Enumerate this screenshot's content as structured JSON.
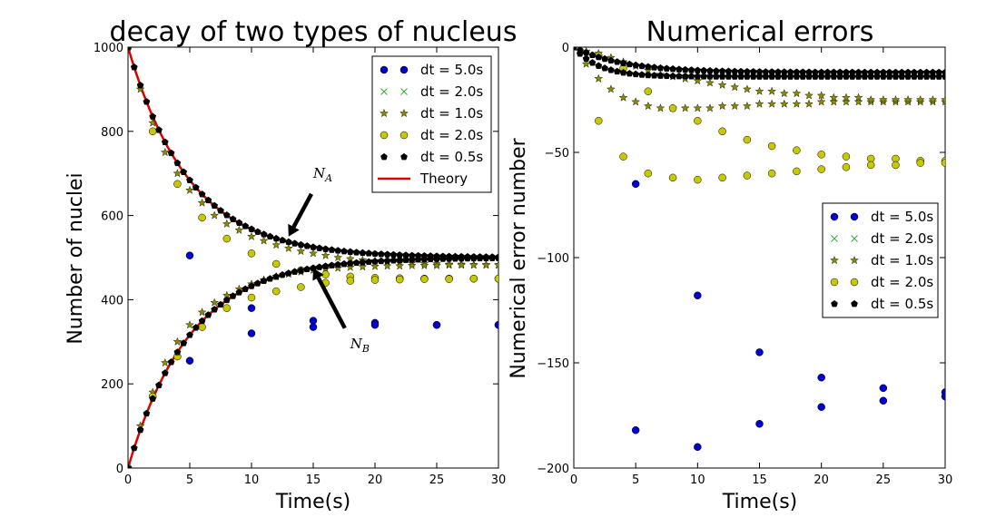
{
  "chart_data": [
    {
      "type": "scatter",
      "title": "decay of two types of nucleus",
      "xlabel": "Time(s)",
      "ylabel": "Number of nuclei",
      "xlim": [
        0,
        30
      ],
      "ylim": [
        0,
        1000
      ],
      "xticks": [
        0,
        5,
        10,
        15,
        20,
        25,
        30
      ],
      "yticks": [
        0,
        200,
        400,
        600,
        800,
        1000
      ],
      "grid": false,
      "legend_position": "top-right",
      "series": [
        {
          "name": "dt=5.0s",
          "marker": "circle",
          "color": "#0000cc",
          "points": [
            [
              0,
              1000
            ],
            [
              5,
              505
            ],
            [
              10,
              380
            ],
            [
              15,
              350
            ],
            [
              20,
              345
            ],
            [
              25,
              340
            ],
            [
              30,
              340
            ],
            [
              0,
              0
            ],
            [
              5,
              255
            ],
            [
              10,
              320
            ],
            [
              15,
              335
            ],
            [
              20,
              340
            ],
            [
              25,
              340
            ],
            [
              30,
              340
            ]
          ]
        },
        {
          "name": "dt=2.0s",
          "marker": "x",
          "color": "#33aa33",
          "points": []
        },
        {
          "name": "dt=1.0s",
          "marker": "star",
          "color": "#8a8a00",
          "points": [
            [
              0,
              1000
            ],
            [
              1,
              900
            ],
            [
              2,
              820
            ],
            [
              3,
              750
            ],
            [
              4,
              700
            ],
            [
              5,
              660
            ],
            [
              6,
              630
            ],
            [
              7,
              600
            ],
            [
              8,
              580
            ],
            [
              9,
              565
            ],
            [
              10,
              550
            ],
            [
              11,
              540
            ],
            [
              12,
              530
            ],
            [
              13,
              522
            ],
            [
              14,
              515
            ],
            [
              15,
              510
            ],
            [
              16,
              505
            ],
            [
              17,
              500
            ],
            [
              18,
              497
            ],
            [
              19,
              494
            ],
            [
              20,
              492
            ],
            [
              21,
              490
            ],
            [
              22,
              488
            ],
            [
              23,
              487
            ],
            [
              24,
              486
            ],
            [
              25,
              485
            ],
            [
              26,
              484
            ],
            [
              27,
              484
            ],
            [
              28,
              483
            ],
            [
              29,
              483
            ],
            [
              30,
              483
            ],
            [
              0,
              0
            ],
            [
              1,
              100
            ],
            [
              2,
              180
            ],
            [
              3,
              250
            ],
            [
              4,
              300
            ],
            [
              5,
              340
            ],
            [
              6,
              370
            ],
            [
              7,
              393
            ],
            [
              8,
              410
            ],
            [
              9,
              425
            ],
            [
              10,
              437
            ],
            [
              11,
              447
            ],
            [
              12,
              455
            ],
            [
              13,
              461
            ],
            [
              14,
              466
            ],
            [
              15,
              470
            ],
            [
              16,
              473
            ],
            [
              17,
              475
            ],
            [
              18,
              477
            ],
            [
              19,
              478
            ],
            [
              20,
              479
            ],
            [
              21,
              480
            ],
            [
              22,
              480
            ],
            [
              23,
              481
            ],
            [
              24,
              481
            ],
            [
              25,
              481
            ],
            [
              26,
              482
            ],
            [
              27,
              482
            ],
            [
              28,
              482
            ],
            [
              29,
              482
            ],
            [
              30,
              482
            ]
          ]
        },
        {
          "name": "dt=2.0s",
          "marker": "circle",
          "color": "#c8c800",
          "points": [
            [
              0,
              1000
            ],
            [
              2,
              800
            ],
            [
              4,
              675
            ],
            [
              6,
              595
            ],
            [
              8,
              545
            ],
            [
              10,
              510
            ],
            [
              12,
              485
            ],
            [
              14,
              470
            ],
            [
              16,
              460
            ],
            [
              18,
              455
            ],
            [
              20,
              452
            ],
            [
              22,
              451
            ],
            [
              24,
              450
            ],
            [
              26,
              450
            ],
            [
              28,
              450
            ],
            [
              30,
              450
            ],
            [
              0,
              0
            ],
            [
              2,
              170
            ],
            [
              4,
              265
            ],
            [
              6,
              335
            ],
            [
              8,
              380
            ],
            [
              10,
              405
            ],
            [
              12,
              420
            ],
            [
              14,
              430
            ],
            [
              16,
              440
            ],
            [
              18,
              445
            ],
            [
              20,
              447
            ],
            [
              22,
              448
            ],
            [
              24,
              449
            ],
            [
              26,
              449
            ],
            [
              28,
              450
            ],
            [
              30,
              450
            ]
          ]
        },
        {
          "name": "dt=0.5s",
          "marker": "pentagon",
          "color": "#000000",
          "points": "A: 500+500*exp(-t/5); B: 500-500*exp(-t/5), t=0..30 step 0.5"
        }
      ],
      "theory": {
        "name": "Theory",
        "color": "#dd0000"
      },
      "annotations": [
        {
          "text": "N",
          "subscript": "A",
          "x": 15,
          "y": 690,
          "arrow_to": [
            13,
            550
          ]
        },
        {
          "text": "N",
          "subscript": "B",
          "x": 18,
          "y": 285,
          "arrow_to": [
            15,
            475
          ]
        }
      ]
    },
    {
      "type": "scatter",
      "title": "Numerical errors",
      "xlabel": "Time(s)",
      "ylabel": "Numerical error number",
      "xlim": [
        0,
        30
      ],
      "ylim": [
        -200,
        0
      ],
      "xticks": [
        0,
        5,
        10,
        15,
        20,
        25,
        30
      ],
      "yticks": [
        0,
        -50,
        -100,
        -150,
        -200
      ],
      "grid": false,
      "legend_position": "center-right",
      "series": [
        {
          "name": "dt=5.0s",
          "marker": "circle",
          "color": "#0000cc",
          "points": [
            [
              5,
              -65
            ],
            [
              10,
              -118
            ],
            [
              15,
              -145
            ],
            [
              20,
              -157
            ],
            [
              25,
              -162
            ],
            [
              30,
              -164
            ],
            [
              5,
              -182
            ],
            [
              10,
              -190
            ],
            [
              15,
              -179
            ],
            [
              20,
              -171
            ],
            [
              25,
              -168
            ],
            [
              30,
              -166
            ]
          ]
        },
        {
          "name": "dt=2.0s",
          "marker": "x",
          "color": "#33aa33",
          "points": []
        },
        {
          "name": "dt=1.0s",
          "marker": "star",
          "color": "#8a8a00",
          "points": [
            [
              0,
              0
            ],
            [
              1,
              -8
            ],
            [
              2,
              -15
            ],
            [
              3,
              -20
            ],
            [
              4,
              -24
            ],
            [
              5,
              -26
            ],
            [
              6,
              -28
            ],
            [
              7,
              -29
            ],
            [
              8,
              -29
            ],
            [
              9,
              -29
            ],
            [
              10,
              -29
            ],
            [
              11,
              -29
            ],
            [
              12,
              -28
            ],
            [
              13,
              -28
            ],
            [
              14,
              -28
            ],
            [
              15,
              -27
            ],
            [
              16,
              -27
            ],
            [
              17,
              -27
            ],
            [
              18,
              -27
            ],
            [
              19,
              -27
            ],
            [
              20,
              -26
            ],
            [
              21,
              -26
            ],
            [
              22,
              -26
            ],
            [
              23,
              -26
            ],
            [
              24,
              -26
            ],
            [
              25,
              -26
            ],
            [
              26,
              -26
            ],
            [
              27,
              -26
            ],
            [
              28,
              -26
            ],
            [
              29,
              -26
            ],
            [
              30,
              -26
            ],
            [
              0,
              0
            ],
            [
              1,
              -2
            ],
            [
              2,
              -3
            ],
            [
              3,
              -5
            ],
            [
              4,
              -7
            ],
            [
              5,
              -9
            ],
            [
              6,
              -11
            ],
            [
              7,
              -13
            ],
            [
              8,
              -14
            ],
            [
              9,
              -15
            ],
            [
              10,
              -16
            ],
            [
              11,
              -17
            ],
            [
              12,
              -18
            ],
            [
              13,
              -19
            ],
            [
              14,
              -20
            ],
            [
              15,
              -21
            ],
            [
              16,
              -21
            ],
            [
              17,
              -22
            ],
            [
              18,
              -22
            ],
            [
              19,
              -23
            ],
            [
              20,
              -23
            ],
            [
              21,
              -24
            ],
            [
              22,
              -24
            ],
            [
              23,
              -24
            ],
            [
              24,
              -25
            ],
            [
              25,
              -25
            ],
            [
              26,
              -25
            ],
            [
              27,
              -25
            ],
            [
              28,
              -25
            ],
            [
              29,
              -25
            ],
            [
              30,
              -25
            ]
          ]
        },
        {
          "name": "dt=2.0s",
          "marker": "circle",
          "color": "#c8c800",
          "points": [
            [
              2,
              -4
            ],
            [
              4,
              -10
            ],
            [
              6,
              -21
            ],
            [
              8,
              -29
            ],
            [
              10,
              -35
            ],
            [
              12,
              -40
            ],
            [
              14,
              -44
            ],
            [
              16,
              -47
            ],
            [
              18,
              -49
            ],
            [
              20,
              -51
            ],
            [
              22,
              -52
            ],
            [
              24,
              -53
            ],
            [
              26,
              -53
            ],
            [
              28,
              -54
            ],
            [
              30,
              -54
            ],
            [
              2,
              -35
            ],
            [
              4,
              -52
            ],
            [
              6,
              -60
            ],
            [
              8,
              -62
            ],
            [
              10,
              -63
            ],
            [
              12,
              -62
            ],
            [
              14,
              -61
            ],
            [
              16,
              -60
            ],
            [
              18,
              -59
            ],
            [
              20,
              -58
            ],
            [
              22,
              -57
            ],
            [
              24,
              -56
            ],
            [
              26,
              -56
            ],
            [
              28,
              -55
            ],
            [
              30,
              -55
            ]
          ]
        },
        {
          "name": "dt=0.5s",
          "marker": "pentagon",
          "color": "#000000",
          "points": "A: -12*(1-exp(-t/4)); B: -14*(1-exp(-t/2)), t=0..30 step 0.5"
        }
      ]
    }
  ],
  "legend_labels": {
    "left": [
      "dt = 5.0s",
      "dt = 2.0s",
      "dt = 1.0s",
      "dt = 2.0s",
      "dt = 0.5s",
      "Theory"
    ],
    "right": [
      "dt = 5.0s",
      "dt = 2.0s",
      "dt = 1.0s",
      "dt = 2.0s",
      "dt = 0.5s"
    ]
  }
}
